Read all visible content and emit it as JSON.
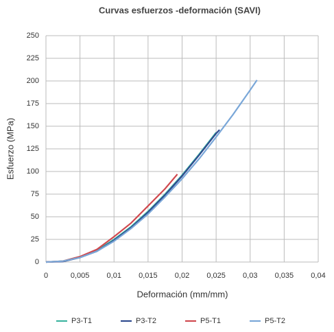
{
  "chart_data": {
    "type": "line",
    "title": "Curvas esfuerzos -deformación (SAVI)",
    "x_label": "Deformación (mm/mm)",
    "y_label": "Esfuerzo (MPa)",
    "xlim": [
      0,
      0.04
    ],
    "ylim": [
      0,
      250
    ],
    "xticks": [
      0,
      {
        "value": 0.005,
        "label": "0,005"
      },
      {
        "value": 0.01,
        "label": "0,01"
      },
      {
        "value": 0.015,
        "label": "0,015"
      },
      {
        "value": 0.02,
        "label": "0,02"
      },
      {
        "value": 0.025,
        "label": "0,025"
      },
      {
        "value": 0.03,
        "label": "0,03"
      },
      {
        "value": 0.035,
        "label": "0,035"
      },
      {
        "value": 0.04,
        "label": "0,04"
      }
    ],
    "yticks": [
      0,
      25,
      50,
      75,
      100,
      125,
      150,
      175,
      200,
      225,
      250
    ],
    "grid": true,
    "legend": "bottom",
    "series": [
      {
        "name": "P3-T1",
        "color": "#3cb4a0",
        "x": [
          0,
          0.0025,
          0.005,
          0.0075,
          0.01,
          0.0125,
          0.015,
          0.0175,
          0.02,
          0.0225,
          0.025
        ],
        "values": [
          0,
          1,
          6,
          13,
          25,
          39,
          56,
          75,
          96,
          119,
          143
        ]
      },
      {
        "name": "P3-T2",
        "color": "#2e4a8f",
        "x": [
          0,
          0.0025,
          0.005,
          0.0075,
          0.01,
          0.0125,
          0.015,
          0.0175,
          0.02,
          0.0225,
          0.025,
          0.0255
        ],
        "values": [
          0,
          0.5,
          5,
          12,
          24,
          38,
          55,
          74,
          95,
          118,
          142,
          146
        ]
      },
      {
        "name": "P5-T1",
        "color": "#d0494f",
        "x": [
          0,
          0.0025,
          0.005,
          0.0075,
          0.01,
          0.0125,
          0.015,
          0.0175,
          0.0193
        ],
        "values": [
          0,
          1,
          6,
          14,
          28,
          43,
          62,
          81,
          97
        ]
      },
      {
        "name": "P5-T2",
        "color": "#7aa7d8",
        "x": [
          0,
          0.0025,
          0.005,
          0.0075,
          0.01,
          0.0125,
          0.015,
          0.0175,
          0.02,
          0.0225,
          0.025,
          0.0275,
          0.03,
          0.031
        ],
        "values": [
          0,
          1,
          5,
          12,
          23,
          37,
          53,
          72,
          92,
          114,
          138,
          163,
          190,
          201
        ]
      }
    ]
  }
}
